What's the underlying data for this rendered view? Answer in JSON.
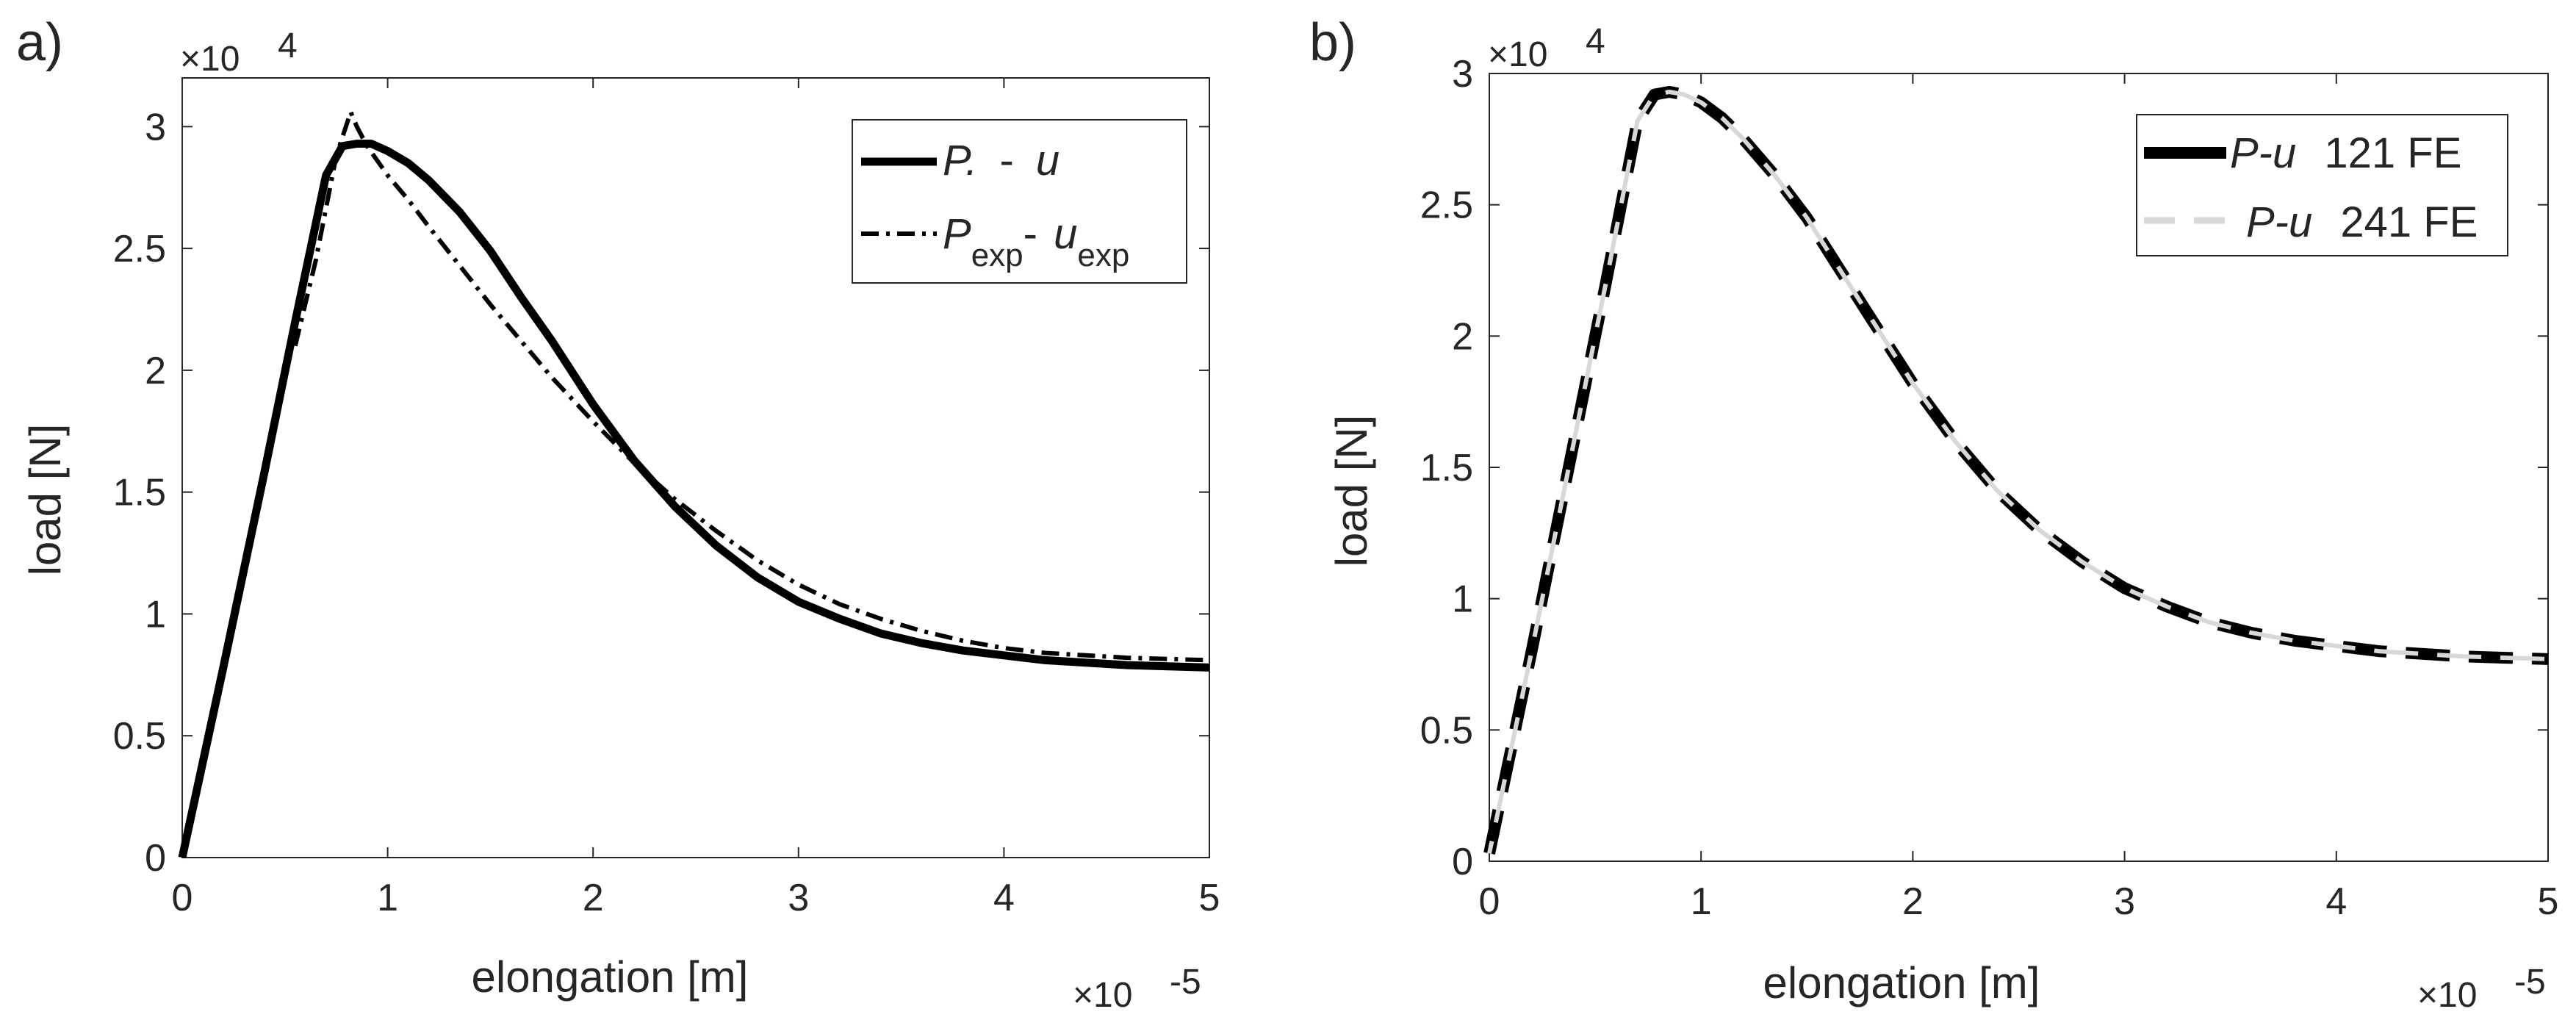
{
  "figure": {
    "panels": [
      {
        "tag": "a)"
      },
      {
        "tag": "b)"
      }
    ]
  },
  "chart_data": [
    {
      "type": "line",
      "panel_label": "a)",
      "xlabel": "elongation [m]",
      "ylabel": "load [N]",
      "x_multiplier": {
        "base": "×10",
        "exponent": "-5"
      },
      "y_multiplier": {
        "base": "×10",
        "exponent": "4"
      },
      "xlim": [
        0,
        5
      ],
      "ylim": [
        0,
        3.2
      ],
      "x_ticks": [
        0,
        1,
        2,
        3,
        4,
        5
      ],
      "x_tick_labels": [
        "0",
        "1",
        "2",
        "3",
        "4",
        "5"
      ],
      "y_ticks": [
        0,
        0.5,
        1,
        1.5,
        2,
        2.5,
        3
      ],
      "y_tick_labels": [
        "0",
        "0.5",
        "1",
        "1.5",
        "2",
        "2.5",
        "3"
      ],
      "grid": false,
      "legend_position": "top-right",
      "series": [
        {
          "name": "P. - u",
          "legend": {
            "main1": "P.",
            "sep": "-",
            "main2": "u"
          },
          "style": "solid",
          "color": "#000000",
          "weight": "thick",
          "x": [
            0,
            0.2,
            0.4,
            0.55,
            0.7,
            0.78,
            0.85,
            0.92,
            1.0,
            1.1,
            1.2,
            1.35,
            1.5,
            1.65,
            1.8,
            2.0,
            2.2,
            2.4,
            2.6,
            2.8,
            3.0,
            3.2,
            3.4,
            3.6,
            3.8,
            4.0,
            4.2,
            4.4,
            4.6,
            4.8,
            5.0
          ],
          "y": [
            0,
            0.78,
            1.58,
            2.2,
            2.8,
            2.92,
            2.93,
            2.93,
            2.9,
            2.85,
            2.78,
            2.65,
            2.49,
            2.3,
            2.12,
            1.86,
            1.63,
            1.44,
            1.28,
            1.15,
            1.05,
            0.98,
            0.92,
            0.88,
            0.85,
            0.83,
            0.81,
            0.8,
            0.79,
            0.785,
            0.78
          ]
        },
        {
          "name": "Pexp- uexp",
          "legend": {
            "main1": "P",
            "sub1": "exp",
            "sep": "-",
            "main2": "u",
            "sub2": "exp"
          },
          "style": "dashdot",
          "color": "#000000",
          "weight": "thin",
          "x": [
            0.55,
            0.65,
            0.75,
            0.82,
            0.85,
            0.9,
            0.95,
            1.0,
            1.1,
            1.2,
            1.35,
            1.5,
            1.65,
            1.8,
            2.0,
            2.2,
            2.4,
            2.6,
            2.8,
            3.0,
            3.2,
            3.4,
            3.6,
            3.8,
            4.0,
            4.2,
            4.4,
            4.6,
            4.8,
            5.0
          ],
          "y": [
            2.1,
            2.45,
            2.88,
            3.06,
            3.0,
            2.92,
            2.86,
            2.8,
            2.7,
            2.59,
            2.43,
            2.27,
            2.12,
            1.97,
            1.79,
            1.62,
            1.47,
            1.34,
            1.22,
            1.12,
            1.04,
            0.98,
            0.93,
            0.89,
            0.86,
            0.84,
            0.83,
            0.82,
            0.815,
            0.81
          ]
        }
      ]
    },
    {
      "type": "line",
      "panel_label": "b)",
      "xlabel": "elongation [m]",
      "ylabel": "load [N]",
      "x_multiplier": {
        "base": "×10",
        "exponent": "-5"
      },
      "y_multiplier": {
        "base": "×10",
        "exponent": "4"
      },
      "xlim": [
        0,
        5
      ],
      "ylim": [
        0,
        3
      ],
      "x_ticks": [
        0,
        1,
        2,
        3,
        4,
        5
      ],
      "x_tick_labels": [
        "0",
        "1",
        "2",
        "3",
        "4",
        "5"
      ],
      "y_ticks": [
        0,
        0.5,
        1,
        1.5,
        2,
        2.5,
        3
      ],
      "y_tick_labels": [
        "0",
        "0.5",
        "1",
        "1.5",
        "2",
        "2.5",
        "3"
      ],
      "grid": false,
      "legend_position": "top-right",
      "series": [
        {
          "name": "P-u 121 FE",
          "legend": {
            "italic": "P-u",
            "text": "121 FE"
          },
          "style": "dashed",
          "color": "#000000",
          "weight": "thick",
          "x": [
            0,
            0.2,
            0.4,
            0.55,
            0.7,
            0.78,
            0.85,
            0.92,
            1.0,
            1.1,
            1.2,
            1.35,
            1.5,
            1.65,
            1.8,
            2.0,
            2.2,
            2.4,
            2.6,
            2.8,
            3.0,
            3.2,
            3.4,
            3.6,
            3.8,
            4.0,
            4.2,
            4.4,
            4.6,
            4.8,
            5.0
          ],
          "y": [
            0.03,
            0.8,
            1.6,
            2.2,
            2.82,
            2.92,
            2.93,
            2.92,
            2.89,
            2.83,
            2.75,
            2.61,
            2.45,
            2.26,
            2.07,
            1.82,
            1.6,
            1.41,
            1.26,
            1.14,
            1.04,
            0.97,
            0.91,
            0.87,
            0.84,
            0.82,
            0.8,
            0.79,
            0.78,
            0.775,
            0.77
          ]
        },
        {
          "name": "P-u 241 FE",
          "legend": {
            "italic": "P-u",
            "text": "241 FE"
          },
          "style": "dashed",
          "color": "#d8d8d8",
          "weight": "medium",
          "x": [
            0,
            0.2,
            0.4,
            0.55,
            0.7,
            0.78,
            0.85,
            0.92,
            1.0,
            1.1,
            1.2,
            1.35,
            1.5,
            1.65,
            1.8,
            2.0,
            2.2,
            2.4,
            2.6,
            2.8,
            3.0,
            3.2,
            3.4,
            3.6,
            3.8,
            4.0,
            4.2,
            4.4,
            4.6,
            4.8,
            5.0
          ],
          "y": [
            0.03,
            0.8,
            1.6,
            2.2,
            2.82,
            2.92,
            2.93,
            2.92,
            2.89,
            2.83,
            2.75,
            2.61,
            2.45,
            2.26,
            2.07,
            1.82,
            1.6,
            1.41,
            1.26,
            1.14,
            1.04,
            0.97,
            0.91,
            0.87,
            0.84,
            0.82,
            0.8,
            0.79,
            0.78,
            0.775,
            0.77
          ]
        }
      ]
    }
  ]
}
